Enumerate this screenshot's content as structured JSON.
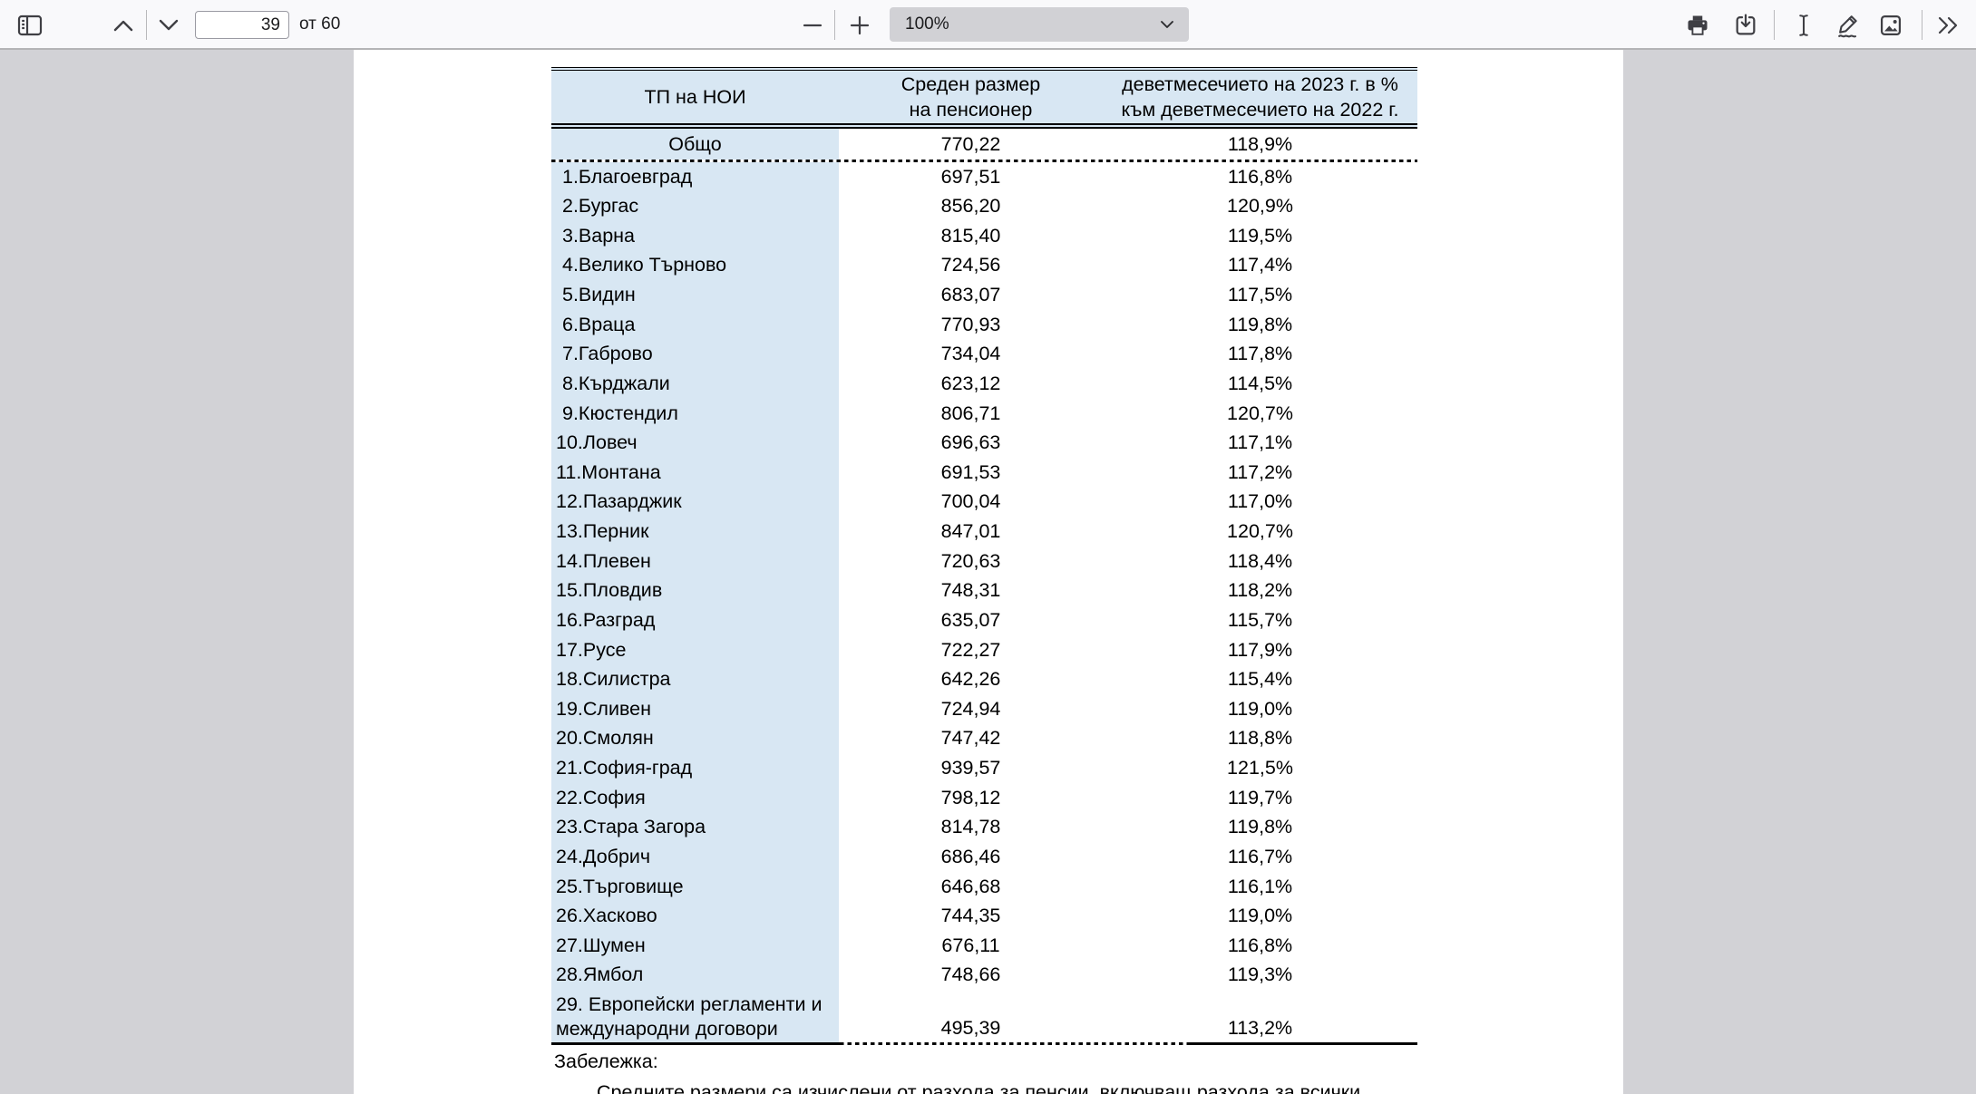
{
  "toolbar": {
    "page_input": "39",
    "page_count_label": "от 60",
    "zoom_value": "100%",
    "icons": {
      "toggle_sidebar": "sidebar-panel",
      "previous_page": "chevron-up",
      "next_page": "chevron-down",
      "zoom_out": "minus",
      "zoom_in": "plus",
      "zoom_menu": "chevron-down",
      "print": "printer",
      "save": "download-tray",
      "text_selection": "i-beam-cursor",
      "draw": "pencil-squiggle",
      "add_image": "picture",
      "more_tools": "double-chevron-right"
    }
  },
  "document": {
    "table": {
      "header": {
        "col1": "ТП на НОИ",
        "col2": [
          "Среден размер",
          "на пенсионер"
        ],
        "col3": [
          "деветмесечието на 2023 г. в %",
          "към деветмесечието на 2022 г."
        ]
      },
      "total": {
        "label": "Общо",
        "avg": "770,22",
        "pct": "118,9%"
      },
      "rows": [
        [
          "1.Благоевград",
          "697,51",
          "116,8%"
        ],
        [
          "2.Бургас",
          "856,20",
          "120,9%"
        ],
        [
          "3.Варна",
          "815,40",
          "119,5%"
        ],
        [
          "4.Велико Търново",
          "724,56",
          "117,4%"
        ],
        [
          "5.Видин",
          "683,07",
          "117,5%"
        ],
        [
          "6.Враца",
          "770,93",
          "119,8%"
        ],
        [
          "7.Габрово",
          "734,04",
          "117,8%"
        ],
        [
          "8.Кърджали",
          "623,12",
          "114,5%"
        ],
        [
          "9.Кюстендил",
          "806,71",
          "120,7%"
        ],
        [
          "10.Ловеч",
          "696,63",
          "117,1%"
        ],
        [
          "11.Монтана",
          "691,53",
          "117,2%"
        ],
        [
          "12.Пазарджик",
          "700,04",
          "117,0%"
        ],
        [
          "13.Перник",
          "847,01",
          "120,7%"
        ],
        [
          "14.Плевен",
          "720,63",
          "118,4%"
        ],
        [
          "15.Пловдив",
          "748,31",
          "118,2%"
        ],
        [
          "16.Разград",
          "635,07",
          "115,7%"
        ],
        [
          "17.Русе",
          "722,27",
          "117,9%"
        ],
        [
          "18.Силистра",
          "642,26",
          "115,4%"
        ],
        [
          "19.Сливен",
          "724,94",
          "119,0%"
        ],
        [
          "20.Смолян",
          "747,42",
          "118,8%"
        ],
        [
          "21.София-град",
          "939,57",
          "121,5%"
        ],
        [
          "22.София",
          "798,12",
          "119,7%"
        ],
        [
          "23.Стара Загора",
          "814,78",
          "119,8%"
        ],
        [
          "24.Добрич",
          "686,46",
          "116,7%"
        ],
        [
          "25.Търговище",
          "646,68",
          "116,1%"
        ],
        [
          "26.Хасково",
          "744,35",
          "119,0%"
        ],
        [
          "27.Шумен",
          "676,11",
          "116,8%"
        ],
        [
          "28.Ямбол",
          "748,66",
          "119,3%"
        ]
      ],
      "last": {
        "label": [
          "29. Европейски регламенти и",
          "международни договори"
        ],
        "avg": "495,39",
        "pct": "113,2%"
      }
    },
    "note_title": "Забележка:",
    "note_body": "Средните размери са изчислени от разхода за пенсии, включващ разхода за всички"
  },
  "colors": {
    "table_header_blue": "#d8e7f3",
    "toolbar_bg": "#f9f9fb",
    "viewer_bg": "#d2d2d6",
    "icon_gray": "#3f3f44"
  }
}
